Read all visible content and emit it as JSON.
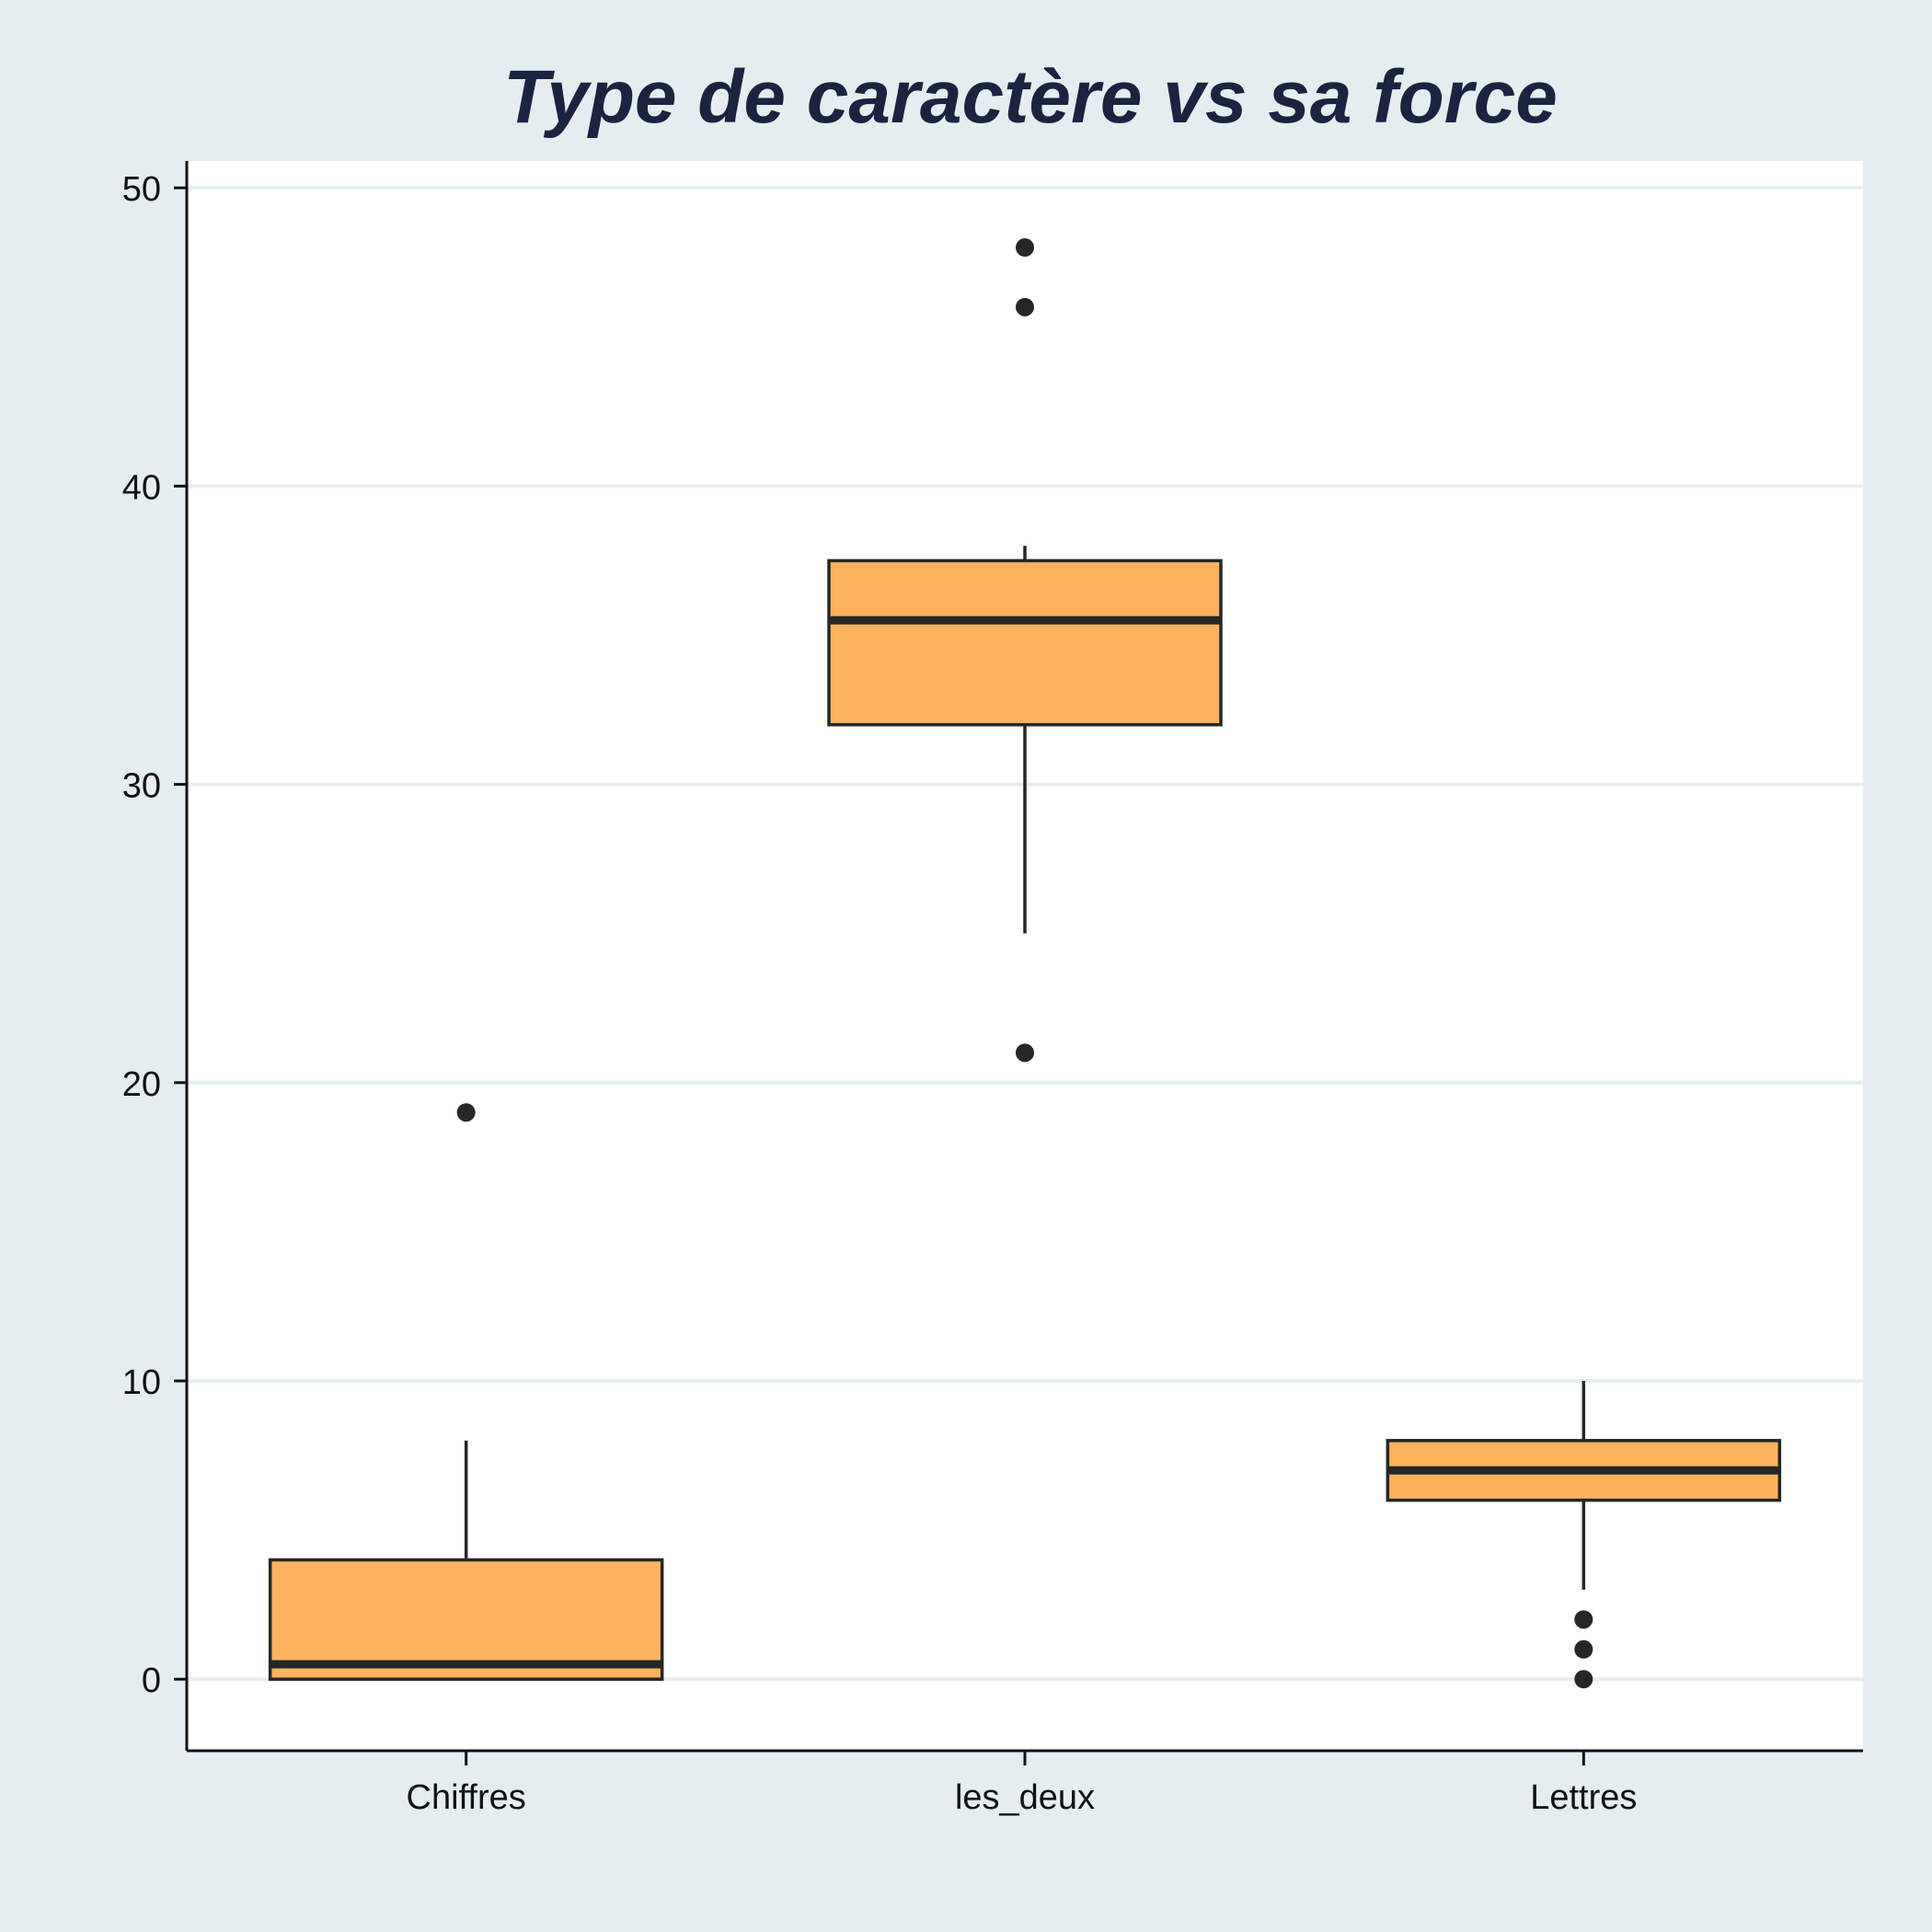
{
  "chart_data": {
    "type": "box",
    "title": "Type de caractère vs sa force",
    "xlabel": "",
    "ylabel": "",
    "categories": [
      "Chiffres",
      "les_deux",
      "Lettres"
    ],
    "boxes": [
      {
        "category": "Chiffres",
        "whisker_low": 0,
        "q1": 0,
        "median": 0.5,
        "q3": 4,
        "whisker_high": 8,
        "outliers": [
          19
        ]
      },
      {
        "category": "les_deux",
        "whisker_low": 25,
        "q1": 32,
        "median": 35.5,
        "q3": 37.5,
        "whisker_high": 38,
        "outliers": [
          21,
          46,
          48
        ]
      },
      {
        "category": "Lettres",
        "whisker_low": 3,
        "q1": 6,
        "median": 7,
        "q3": 8,
        "whisker_high": 10,
        "outliers": [
          0,
          1,
          2
        ]
      }
    ],
    "yticks": [
      0,
      10,
      20,
      30,
      40,
      50
    ],
    "ylim": [
      -2.4,
      50.9
    ],
    "grid": true,
    "legend": "none",
    "colors": {
      "box_fill": "#fdb35e",
      "box_stroke": "#262626",
      "grid": "#e4eef0",
      "plot_bg": "#ffffff",
      "page_bg": "#e4eef0",
      "title": "#1a2340"
    }
  }
}
